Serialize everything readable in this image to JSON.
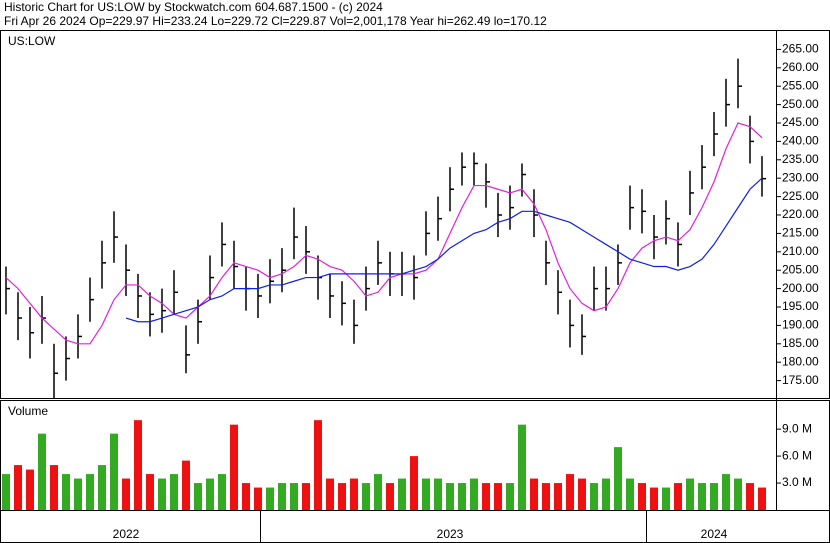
{
  "chart_data": {
    "type": "ohlc",
    "title": "Historic Chart for US:LOW by Stockwatch.com 604.687.1500 - (c) 2024",
    "subtitle": "Fri Apr 26 2024  Op=229.97  Hi=233.24  Lo=229.72  Cl=229.87  Vol=2,001,178  Year hi=262.49  lo=170.12",
    "symbol": "US:LOW",
    "categories": [
      null,
      null,
      null,
      null,
      null,
      null,
      null,
      null,
      null,
      null,
      "2022",
      null,
      null,
      null,
      null,
      null,
      null,
      null,
      null,
      null,
      null,
      null,
      null,
      null,
      null,
      null,
      null,
      null,
      null,
      null,
      null,
      null,
      null,
      null,
      null,
      null,
      null,
      "2023",
      null,
      null,
      null,
      null,
      null,
      null,
      null,
      null,
      null,
      null,
      null,
      null,
      null,
      null,
      null,
      null,
      null,
      null,
      null,
      null,
      null,
      "2024",
      null,
      null,
      null,
      null
    ],
    "high": [
      206,
      199,
      195,
      198,
      185,
      187,
      193,
      203,
      213,
      221,
      212,
      204,
      199,
      200,
      205,
      190,
      197,
      209,
      218,
      213,
      206,
      204,
      208,
      211,
      222,
      217,
      209,
      204,
      202,
      197,
      206,
      213,
      210,
      210,
      209,
      221,
      225,
      233,
      237,
      237,
      234,
      226,
      228,
      234,
      227,
      213,
      205,
      197,
      193,
      206,
      206,
      212,
      228,
      227,
      220,
      224,
      218,
      232,
      239,
      248,
      257,
      262.49,
      247,
      236
    ],
    "low": [
      193,
      186,
      181,
      185,
      170.12,
      175,
      181,
      191,
      200,
      207,
      198,
      192,
      187,
      188,
      193,
      177,
      185,
      197,
      206,
      200,
      194,
      192,
      196,
      199,
      208,
      204,
      197,
      192,
      190,
      185,
      194,
      201,
      198,
      198,
      197,
      209,
      213,
      221,
      228,
      228,
      222,
      214,
      216,
      225,
      214,
      201,
      193,
      184,
      182,
      194,
      194,
      201,
      216,
      215,
      208,
      212,
      206,
      220,
      227,
      236,
      244,
      249,
      234,
      225
    ],
    "close": [
      200,
      192,
      188,
      192,
      177,
      181,
      187,
      197,
      207,
      214,
      205,
      198,
      193,
      194,
      199,
      182,
      191,
      203,
      212,
      206,
      200,
      198,
      202,
      205,
      214,
      210,
      203,
      198,
      196,
      190,
      200,
      207,
      204,
      204,
      203,
      215,
      219,
      227,
      233,
      234,
      229,
      220,
      222,
      231,
      220,
      207,
      199,
      190,
      187,
      200,
      200,
      207,
      222,
      221,
      214,
      219,
      212,
      226,
      233,
      242,
      250,
      255,
      240,
      229.87
    ],
    "ma_short": {
      "color": "#e020e0",
      "values": [
        203,
        200,
        196,
        192,
        189,
        186,
        185,
        185,
        190,
        197,
        201,
        201,
        198,
        196,
        193,
        192,
        195,
        198,
        203,
        207,
        206,
        205,
        203,
        204,
        206,
        209,
        208,
        206,
        205,
        202,
        198,
        199,
        203,
        204,
        204,
        205,
        208,
        215,
        222,
        228,
        228,
        227,
        226,
        227,
        223,
        216,
        207,
        200,
        196,
        194,
        195,
        200,
        207,
        211,
        213,
        214,
        213,
        216,
        222,
        229,
        238,
        245,
        244,
        241
      ]
    },
    "ma_long": {
      "color": "#1020e0",
      "values": [
        null,
        null,
        null,
        null,
        null,
        null,
        null,
        null,
        null,
        null,
        192,
        191,
        191,
        192,
        193,
        194,
        195,
        197,
        198,
        200,
        200,
        200,
        201,
        201,
        202,
        203,
        203,
        204,
        204,
        204,
        204,
        204,
        204,
        204,
        205,
        206,
        208,
        211,
        213,
        215,
        216,
        218,
        219,
        221,
        221,
        220,
        219,
        218,
        216,
        214,
        212,
        210,
        208,
        207,
        206,
        206,
        205,
        206,
        208,
        212,
        217,
        222,
        227,
        230
      ]
    },
    "bar_color": "#000000",
    "ylim": [
      170,
      270
    ],
    "yticks": [
      {
        "value": 175,
        "label": "175.00"
      },
      {
        "value": 180,
        "label": "180.00"
      },
      {
        "value": 185,
        "label": "185.00"
      },
      {
        "value": 190,
        "label": "190.00"
      },
      {
        "value": 195,
        "label": "195.00"
      },
      {
        "value": 200,
        "label": "200.00"
      },
      {
        "value": 205,
        "label": "205.00"
      },
      {
        "value": 210,
        "label": "210.00"
      },
      {
        "value": 215,
        "label": "215.00"
      },
      {
        "value": 220,
        "label": "220.00"
      },
      {
        "value": 225,
        "label": "225.00"
      },
      {
        "value": 230,
        "label": "230.00"
      },
      {
        "value": 235,
        "label": "235.00"
      },
      {
        "value": 240,
        "label": "240.00"
      },
      {
        "value": 245,
        "label": "245.00"
      },
      {
        "value": 250,
        "label": "250.00"
      },
      {
        "value": 255,
        "label": "255.00"
      },
      {
        "value": 260,
        "label": "260.00"
      },
      {
        "value": 265,
        "label": "265.00"
      }
    ],
    "volume": {
      "title": "Volume",
      "values": [
        4,
        5,
        4.5,
        8.5,
        5,
        4,
        3.5,
        4,
        5,
        8.5,
        3.5,
        10,
        4,
        3.5,
        4,
        5.5,
        3,
        3.5,
        4,
        9.5,
        3,
        2.5,
        2.5,
        3,
        3,
        3,
        10,
        3.5,
        3,
        3.5,
        3,
        4,
        3,
        3.5,
        6,
        3.5,
        3.5,
        3,
        3,
        3.5,
        3,
        3,
        3,
        9.5,
        3.5,
        3,
        3,
        4,
        3.5,
        3,
        3.5,
        7,
        3.5,
        3,
        2.5,
        2.5,
        3,
        3.5,
        3,
        3,
        4,
        3.5,
        3,
        2.5
      ],
      "up_color": "#33aa22",
      "down_color": "#ee1111",
      "ylim": [
        0,
        11.8
      ],
      "yticks": [
        {
          "value": 3,
          "label": "3.0 M"
        },
        {
          "value": 6,
          "label": "6.0 M"
        },
        {
          "value": 9,
          "label": "9.0 M"
        }
      ]
    }
  }
}
